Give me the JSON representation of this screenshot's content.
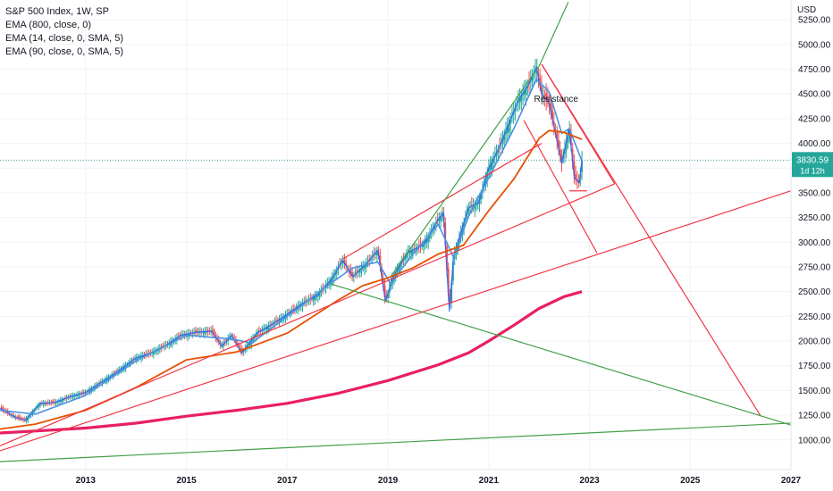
{
  "legend": {
    "title": "S&P 500 Index, 1W, SP",
    "ema800": "EMA (800, close, 0)",
    "ema14": "EMA (14, close, 0, SMA, 5)",
    "ema90": "EMA (90, close, 0, SMA, 5)"
  },
  "price_badge": {
    "value": "3830.59",
    "countdown": "1d 12h",
    "color": "#26a69a"
  },
  "colors": {
    "price": "#2962ff",
    "ema14": "#4a90e2",
    "ema90": "#e65100",
    "ema800": "#e91e63",
    "red_lines": "#f23645",
    "green_lines": "#43a047",
    "up_candle": "#26a69a",
    "down_candle": "#ef5350"
  },
  "chart_data": {
    "type": "line",
    "title": "S&P 500 Index, 1W, SP",
    "currency": "USD",
    "xlim": [
      2011.3,
      2027.0
    ],
    "ylim": [
      700,
      5450
    ],
    "x_ticks": [
      "2013",
      "2015",
      "2017",
      "2019",
      "2021",
      "2023",
      "2025",
      "2027"
    ],
    "y_ticks": [
      "1000.00",
      "1250.00",
      "1500.00",
      "1750.00",
      "2000.00",
      "2250.00",
      "2500.00",
      "2750.00",
      "3000.00",
      "3250.00",
      "3500.00",
      "3750.00",
      "4000.00",
      "4250.00",
      "4500.00",
      "4750.00",
      "5000.00",
      "5250.00"
    ],
    "last_price": 3830.59,
    "annotations": [
      {
        "text": "Resistance",
        "x": 2021.9,
        "y": 4420
      }
    ],
    "series": [
      {
        "name": "S&P 500 Index",
        "x": [
          2011.3,
          2011.6,
          2011.8,
          2012.1,
          2012.4,
          2012.7,
          2013.0,
          2013.3,
          2013.6,
          2014.0,
          2014.3,
          2014.6,
          2014.9,
          2015.2,
          2015.5,
          2015.7,
          2015.9,
          2016.1,
          2016.4,
          2016.7,
          2017.0,
          2017.3,
          2017.6,
          2017.9,
          2018.1,
          2018.3,
          2018.6,
          2018.8,
          2018.95,
          2019.1,
          2019.4,
          2019.7,
          2020.0,
          2020.1,
          2020.22,
          2020.3,
          2020.45,
          2020.6,
          2020.8,
          2021.0,
          2021.2,
          2021.4,
          2021.6,
          2021.8,
          2021.95,
          2022.05,
          2022.2,
          2022.3,
          2022.45,
          2022.6,
          2022.7,
          2022.8,
          2022.85
        ],
        "values": [
          1320,
          1230,
          1200,
          1370,
          1380,
          1440,
          1480,
          1580,
          1680,
          1830,
          1880,
          1960,
          2060,
          2090,
          2100,
          1950,
          2060,
          1880,
          2080,
          2170,
          2270,
          2380,
          2460,
          2640,
          2820,
          2650,
          2800,
          2920,
          2400,
          2650,
          2900,
          2970,
          3230,
          3300,
          2300,
          2850,
          3100,
          3350,
          3400,
          3750,
          3950,
          4200,
          4450,
          4600,
          4770,
          4500,
          4400,
          4170,
          3800,
          4150,
          3650,
          3600,
          3830
        ]
      },
      {
        "name": "EMA (14, close, 0, SMA, 5)",
        "x": [
          2011.3,
          2012.0,
          2013.0,
          2014.0,
          2015.0,
          2015.9,
          2016.3,
          2017.0,
          2017.8,
          2018.3,
          2018.8,
          2019.05,
          2019.5,
          2020.0,
          2020.3,
          2020.6,
          2021.0,
          2021.5,
          2021.95,
          2022.2,
          2022.45,
          2022.6,
          2022.85
        ],
        "values": [
          1300,
          1260,
          1450,
          1800,
          2060,
          2020,
          1980,
          2250,
          2560,
          2740,
          2800,
          2580,
          2880,
          3180,
          2850,
          3260,
          3650,
          4150,
          4650,
          4520,
          4100,
          4150,
          3820
        ]
      },
      {
        "name": "EMA (90, close, 0, SMA, 5)",
        "x": [
          2011.3,
          2012.0,
          2013.0,
          2014.0,
          2015.0,
          2016.0,
          2017.0,
          2018.0,
          2018.5,
          2019.0,
          2019.5,
          2020.0,
          2020.5,
          2021.0,
          2021.5,
          2022.0,
          2022.2,
          2022.5,
          2022.85
        ],
        "values": [
          1110,
          1160,
          1300,
          1530,
          1810,
          1890,
          2080,
          2410,
          2560,
          2640,
          2740,
          2880,
          2970,
          3320,
          3640,
          4050,
          4130,
          4110,
          4040
        ]
      },
      {
        "name": "EMA (800, close, 0)",
        "x": [
          2011.3,
          2012.0,
          2013.0,
          2014.0,
          2015.0,
          2016.0,
          2017.0,
          2018.0,
          2019.0,
          2020.0,
          2020.6,
          2021.0,
          2021.5,
          2022.0,
          2022.5,
          2022.85
        ],
        "values": [
          1070,
          1090,
          1120,
          1170,
          1240,
          1300,
          1370,
          1470,
          1600,
          1760,
          1880,
          2000,
          2160,
          2330,
          2450,
          2500
        ]
      }
    ],
    "trend_lines": [
      {
        "color": "red",
        "x": [
          2011.3,
          2027.0
        ],
        "y": [
          890,
          3520
        ]
      },
      {
        "color": "red",
        "x": [
          2011.3,
          2023.5
        ],
        "y": [
          940,
          3590
        ]
      },
      {
        "color": "red",
        "x": [
          2018.1,
          2022.05
        ],
        "y": [
          2830,
          4000
        ]
      },
      {
        "color": "red",
        "x": [
          2022.05,
          2026.4
        ],
        "y": [
          4800,
          1240
        ]
      },
      {
        "color": "red",
        "x": [
          2021.7,
          2023.15
        ],
        "y": [
          4230,
          2890
        ]
      },
      {
        "color": "red",
        "x": [
          2022.05,
          2023.5
        ],
        "y": [
          4800,
          3590
        ]
      },
      {
        "color": "red",
        "x": [
          2022.6,
          2022.95
        ],
        "y": [
          3520,
          3520
        ]
      },
      {
        "color": "green",
        "x": [
          2011.3,
          2027.0
        ],
        "y": [
          780,
          1170
        ]
      },
      {
        "color": "green",
        "x": [
          2017.85,
          2027.0
        ],
        "y": [
          2580,
          1150
        ]
      },
      {
        "color": "green",
        "x": [
          2019.05,
          2022.0
        ],
        "y": [
          2650,
          4780
        ]
      },
      {
        "color": "green",
        "x": [
          2022.0,
          2022.58
        ],
        "y": [
          4780,
          5430
        ]
      }
    ]
  }
}
